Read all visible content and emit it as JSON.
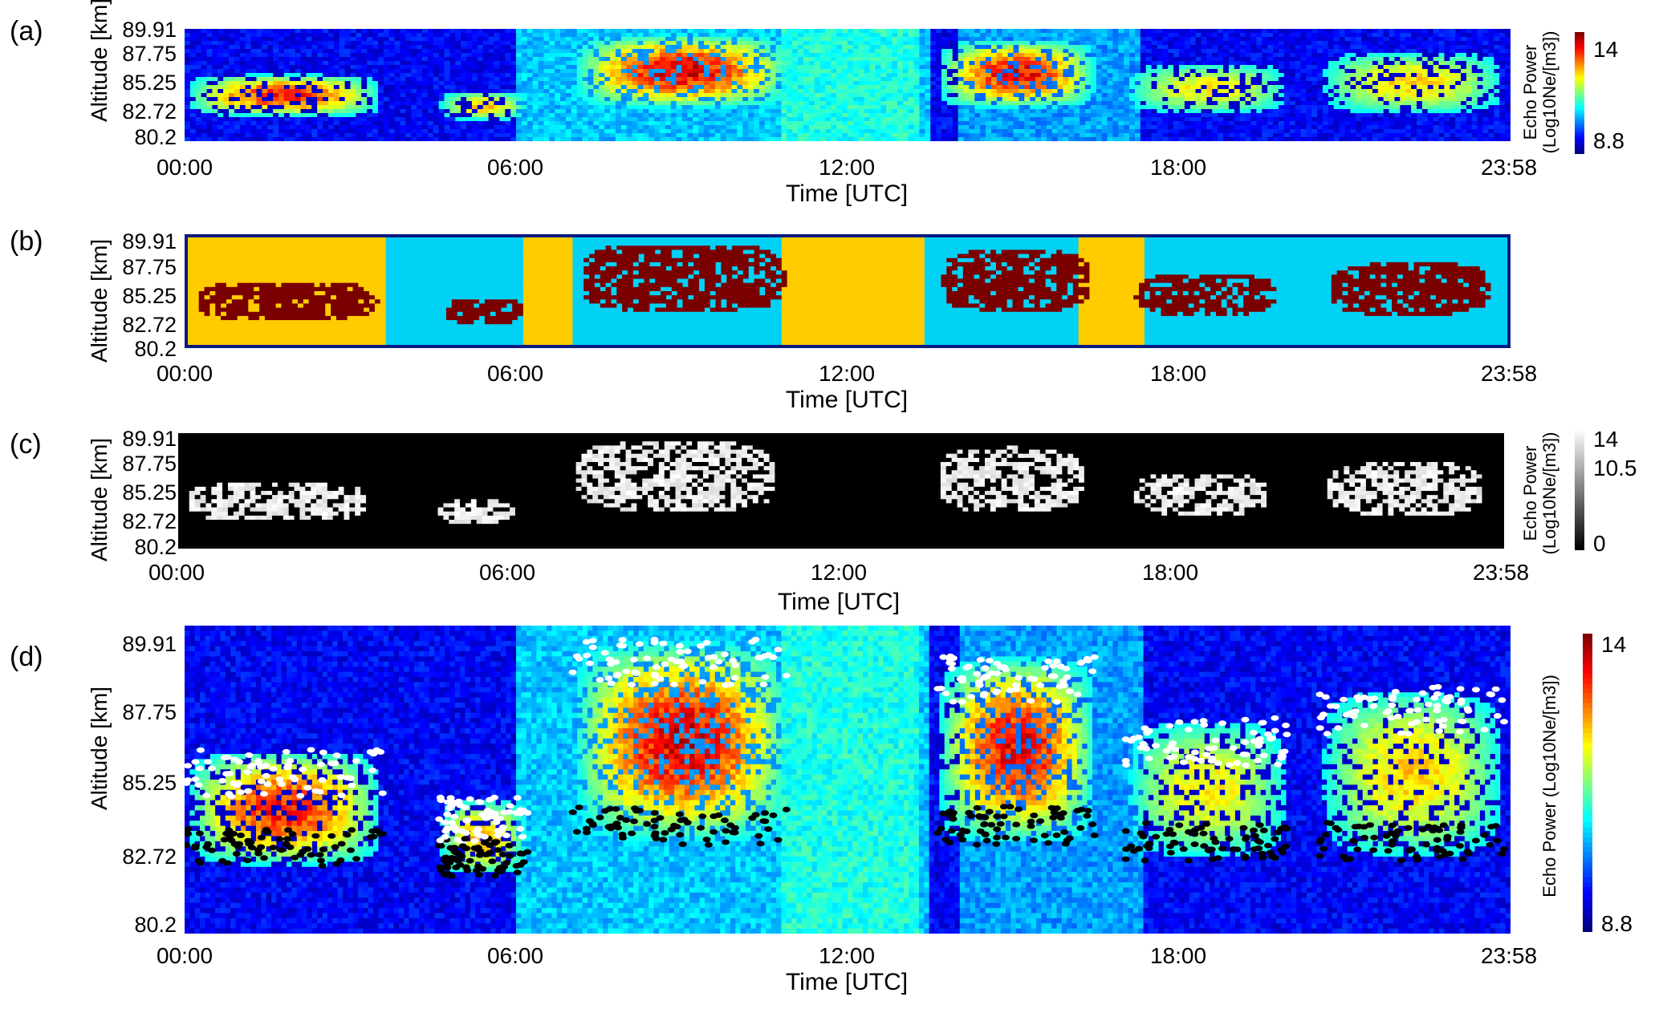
{
  "chart_data": [
    {
      "panel": "(a)",
      "type": "heatmap",
      "ylabel": "Altitude [km]",
      "xlabel": "Time [UTC]",
      "yticks": [
        "89.91",
        "87.75",
        "85.25",
        "82.72",
        "80.2"
      ],
      "xticks": [
        "00:00",
        "06:00",
        "12:00",
        "18:00",
        "23:58"
      ],
      "ylim": [
        80.2,
        89.91
      ],
      "xlim_hours": [
        0,
        23.97
      ],
      "colorbar": {
        "title": "Echo Power (Log10Ne/[m3])",
        "ticks": [
          "14",
          "8.8"
        ],
        "range": [
          8.8,
          14
        ],
        "colormap": "jet"
      },
      "echo_regions": [
        {
          "t": [
            0.0,
            3.6
          ],
          "alt": [
            82.3,
            86.0
          ],
          "peak": 13.5
        },
        {
          "t": [
            4.6,
            6.2
          ],
          "alt": [
            82.0,
            84.5
          ],
          "peak": 12.0
        },
        {
          "t": [
            7.0,
            11.0
          ],
          "alt": [
            83.0,
            89.5
          ],
          "peak": 14.0
        },
        {
          "t": [
            13.6,
            16.5
          ],
          "alt": [
            83.0,
            89.0
          ],
          "peak": 13.8
        },
        {
          "t": [
            17.0,
            20.0
          ],
          "alt": [
            82.5,
            87.0
          ],
          "peak": 11.5
        },
        {
          "t": [
            20.5,
            23.9
          ],
          "alt": [
            82.5,
            88.0
          ],
          "peak": 11.8
        }
      ]
    },
    {
      "panel": "(b)",
      "type": "heatmap",
      "ylabel": "Altitude [km]",
      "xlabel": "Time [UTC]",
      "yticks": [
        "89.91",
        "87.75",
        "85.25",
        "82.72",
        "80.2"
      ],
      "xticks": [
        "00:00",
        "06:00",
        "12:00",
        "18:00",
        "23:58"
      ],
      "classes": [
        {
          "name": "background",
          "color": "#00d2f6"
        },
        {
          "name": "echo",
          "color": "#7a0000"
        },
        {
          "name": "excluded",
          "color": "#ffcc00"
        }
      ],
      "excluded_intervals_hours": [
        [
          0.0,
          0.5
        ],
        [
          0.5,
          3.6
        ],
        [
          6.1,
          7.0
        ],
        [
          10.8,
          13.4
        ],
        [
          16.2,
          17.4
        ]
      ]
    },
    {
      "panel": "(c)",
      "type": "heatmap",
      "ylabel": "Altitude [km]",
      "xlabel": "Time [UTC]",
      "yticks": [
        "89.91",
        "87.75",
        "85.25",
        "82.72",
        "80.2"
      ],
      "xticks": [
        "00:00",
        "06:00",
        "12:00",
        "18:00",
        "23:58"
      ],
      "colorbar": {
        "title": "Echo Power (Log10Ne/[m3])",
        "ticks": [
          "14",
          "10.5",
          "0"
        ],
        "range": [
          0,
          14
        ],
        "colormap": "gray"
      }
    },
    {
      "panel": "(d)",
      "type": "heatmap",
      "ylabel": "Altitude [km]",
      "xlabel": "Time [UTC]",
      "yticks": [
        "89.91",
        "87.75",
        "85.25",
        "82.72",
        "80.2"
      ],
      "xticks": [
        "00:00",
        "06:00",
        "12:00",
        "18:00",
        "23:58"
      ],
      "colorbar": {
        "title": "Echo Power (Log10Ne/[m3])",
        "ticks": [
          "14",
          "8.8"
        ],
        "range": [
          8.8,
          14
        ],
        "colormap": "jet"
      },
      "markers": {
        "white": "upper boundary",
        "black": "lower boundary"
      }
    }
  ],
  "labels": {
    "panel_a": "(a)",
    "panel_b": "(b)",
    "panel_c": "(c)",
    "panel_d": "(d)",
    "ylabel": "Altitude [km]",
    "xlabel": "Time [UTC]",
    "y1": "89.91",
    "y2": "87.75",
    "y3": "85.25",
    "y4": "82.72",
    "y5": "80.2",
    "x1": "00:00",
    "x2": "06:00",
    "x3": "12:00",
    "x4": "18:00",
    "x5": "23:58",
    "cb_a_top": "14",
    "cb_a_bottom": "8.8",
    "cb_c_top": "14",
    "cb_c_mid": "10.5",
    "cb_c_bottom": "0",
    "cb_d_top": "14",
    "cb_d_bottom": "8.8",
    "cb_title_line1": "Echo Power",
    "cb_title_line2": "(Log10Ne/[m3])",
    "cb_title_single": "Echo Power (Log10Ne/[m3])"
  }
}
